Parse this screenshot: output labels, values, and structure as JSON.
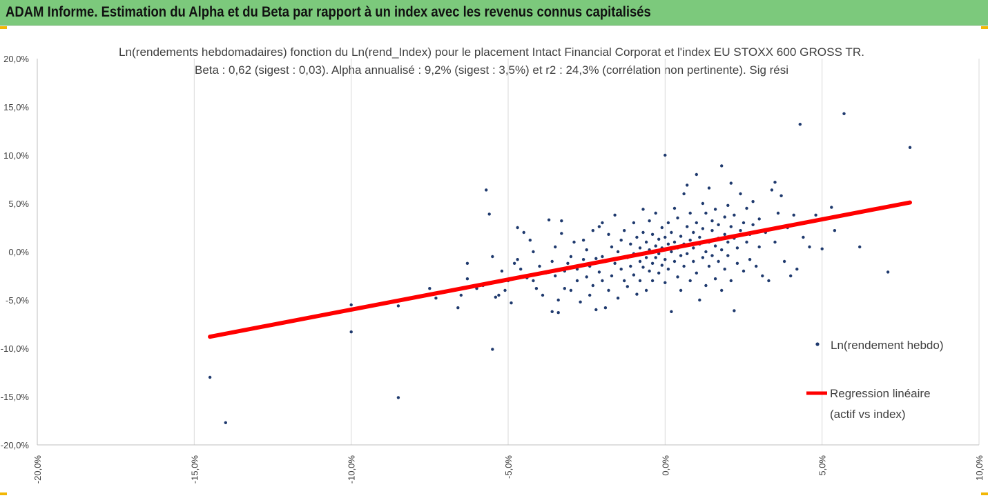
{
  "header": {
    "title": "ADAM Informe. Estimation du Alpha et du Beta par rapport à un index avec les revenus connus capitalisés"
  },
  "colors": {
    "header_bg": "#7cc97c",
    "points": "#1f3a6e",
    "regression": "#ff0000",
    "grid": "#d9d9d9",
    "corner_marks": "#f2b705"
  },
  "chart_data": {
    "type": "scatter",
    "title": "Ln(rendements hebdomadaires) fonction du Ln(rend_Index) pour le placement Intact Financial Corporat et l'index EU STOXX 600 GROSS TR.",
    "subtitle": "Beta : 0,62 (sigest : 0,03).  Alpha annualisé : 9,2% (sigest : 3,5%) et r2 : 24,3% (corrélation non pertinente). Sig rési",
    "xlabel": "",
    "ylabel": "",
    "xlim": [
      -0.2,
      0.1
    ],
    "ylim": [
      -0.2,
      0.2
    ],
    "x_ticks": [
      -0.2,
      -0.15,
      -0.1,
      -0.05,
      0.0,
      0.05,
      0.1
    ],
    "x_tick_labels": [
      "-20,0%",
      "-15,0%",
      "-10,0%",
      "-5,0%",
      "0,0%",
      "5,0%",
      "10,0%"
    ],
    "y_ticks": [
      0.2,
      0.15,
      0.1,
      0.05,
      0.0,
      -0.05,
      -0.1,
      -0.15,
      -0.2
    ],
    "y_tick_labels": [
      "20,0%",
      "15,0%",
      "10,0%",
      "5,0%",
      "0,0%",
      "-5,0%",
      "-10,0%",
      "-15,0%",
      "-20,0%"
    ],
    "grid": "vertical",
    "legend_position": "right",
    "series": [
      {
        "name": "Ln(rendement hebdo)",
        "kind": "scatter",
        "color": "#1f3a6e",
        "points": [
          [
            -0.145,
            -0.13
          ],
          [
            -0.14,
            -0.177
          ],
          [
            -0.1,
            -0.083
          ],
          [
            -0.1,
            -0.055
          ],
          [
            -0.085,
            -0.151
          ],
          [
            -0.085,
            -0.056
          ],
          [
            -0.075,
            -0.038
          ],
          [
            -0.073,
            -0.048
          ],
          [
            -0.066,
            -0.058
          ],
          [
            -0.065,
            -0.045
          ],
          [
            -0.063,
            -0.028
          ],
          [
            -0.063,
            -0.012
          ],
          [
            -0.06,
            -0.038
          ],
          [
            -0.058,
            -0.035
          ],
          [
            -0.057,
            0.064
          ],
          [
            -0.056,
            0.039
          ],
          [
            -0.056,
            -0.032
          ],
          [
            -0.055,
            -0.005
          ],
          [
            -0.055,
            -0.101
          ],
          [
            -0.054,
            -0.047
          ],
          [
            -0.053,
            -0.045
          ],
          [
            -0.052,
            -0.02
          ],
          [
            -0.051,
            -0.04
          ],
          [
            -0.05,
            -0.03
          ],
          [
            -0.049,
            -0.053
          ],
          [
            -0.048,
            -0.012
          ],
          [
            -0.047,
            -0.008
          ],
          [
            -0.047,
            0.025
          ],
          [
            -0.046,
            -0.018
          ],
          [
            -0.045,
            0.02
          ],
          [
            -0.044,
            -0.025
          ],
          [
            -0.044,
            -0.027
          ],
          [
            -0.043,
            0.012
          ],
          [
            -0.042,
            0.0
          ],
          [
            -0.042,
            -0.03
          ],
          [
            -0.041,
            -0.038
          ],
          [
            -0.04,
            -0.015
          ],
          [
            -0.039,
            -0.045
          ],
          [
            -0.038,
            -0.022
          ],
          [
            -0.037,
            0.033
          ],
          [
            -0.036,
            -0.062
          ],
          [
            -0.036,
            -0.01
          ],
          [
            -0.035,
            -0.025
          ],
          [
            -0.035,
            0.005
          ],
          [
            -0.034,
            -0.063
          ],
          [
            -0.034,
            -0.05
          ],
          [
            -0.033,
            0.032
          ],
          [
            -0.033,
            0.019
          ],
          [
            -0.032,
            -0.02
          ],
          [
            -0.032,
            -0.038
          ],
          [
            -0.031,
            -0.012
          ],
          [
            -0.03,
            -0.005
          ],
          [
            -0.03,
            -0.04
          ],
          [
            -0.029,
            0.01
          ],
          [
            -0.028,
            -0.03
          ],
          [
            -0.028,
            -0.018
          ],
          [
            -0.027,
            -0.052
          ],
          [
            -0.026,
            -0.008
          ],
          [
            -0.026,
            0.012
          ],
          [
            -0.025,
            -0.026
          ],
          [
            -0.025,
            0.002
          ],
          [
            -0.024,
            -0.045
          ],
          [
            -0.024,
            -0.015
          ],
          [
            -0.023,
            0.022
          ],
          [
            -0.023,
            -0.035
          ],
          [
            -0.022,
            -0.06
          ],
          [
            -0.022,
            -0.007
          ],
          [
            -0.021,
            0.026
          ],
          [
            -0.021,
            -0.021
          ],
          [
            -0.02,
            -0.03
          ],
          [
            -0.02,
            0.03
          ],
          [
            -0.02,
            -0.005
          ],
          [
            -0.019,
            -0.058
          ],
          [
            -0.019,
            -0.01
          ],
          [
            -0.018,
            -0.04
          ],
          [
            -0.018,
            0.018
          ],
          [
            -0.017,
            0.005
          ],
          [
            -0.017,
            -0.025
          ],
          [
            -0.016,
            -0.012
          ],
          [
            -0.016,
            0.038
          ],
          [
            -0.015,
            -0.048
          ],
          [
            -0.015,
            0.0
          ],
          [
            -0.014,
            -0.018
          ],
          [
            -0.014,
            0.012
          ],
          [
            -0.013,
            -0.03
          ],
          [
            -0.013,
            0.022
          ],
          [
            -0.012,
            -0.006
          ],
          [
            -0.012,
            -0.036
          ],
          [
            -0.011,
            0.008
          ],
          [
            -0.011,
            -0.015
          ],
          [
            -0.01,
            0.03
          ],
          [
            -0.01,
            -0.024
          ],
          [
            -0.01,
            -0.002
          ],
          [
            -0.009,
            -0.044
          ],
          [
            -0.009,
            0.015
          ],
          [
            -0.008,
            -0.01
          ],
          [
            -0.008,
            -0.03
          ],
          [
            -0.008,
            0.004
          ],
          [
            -0.007,
            0.044
          ],
          [
            -0.007,
            -0.016
          ],
          [
            -0.007,
            0.02
          ],
          [
            -0.006,
            -0.006
          ],
          [
            -0.006,
            -0.04
          ],
          [
            -0.006,
            0.01
          ],
          [
            -0.005,
            -0.02
          ],
          [
            -0.005,
            0.002
          ],
          [
            -0.005,
            0.032
          ],
          [
            -0.004,
            -0.012
          ],
          [
            -0.004,
            0.018
          ],
          [
            -0.004,
            -0.03
          ],
          [
            -0.003,
            0.006
          ],
          [
            -0.003,
            -0.006
          ],
          [
            -0.003,
            0.04
          ],
          [
            -0.002,
            -0.022
          ],
          [
            -0.002,
            0.013
          ],
          [
            -0.002,
            -0.002
          ],
          [
            -0.001,
            0.025
          ],
          [
            -0.001,
            -0.014
          ],
          [
            -0.001,
            0.004
          ],
          [
            0.0,
            0.1
          ],
          [
            0.0,
            -0.008
          ],
          [
            0.0,
            0.015
          ],
          [
            0.0,
            -0.032
          ],
          [
            0.001,
            0.008
          ],
          [
            0.001,
            -0.018
          ],
          [
            0.001,
            0.03
          ],
          [
            0.002,
            0.0
          ],
          [
            0.002,
            -0.062
          ],
          [
            0.002,
            0.02
          ],
          [
            0.003,
            -0.01
          ],
          [
            0.003,
            0.045
          ],
          [
            0.003,
            0.01
          ],
          [
            0.004,
            -0.026
          ],
          [
            0.004,
            0.004
          ],
          [
            0.004,
            0.035
          ],
          [
            0.005,
            -0.004
          ],
          [
            0.005,
            0.016
          ],
          [
            0.005,
            -0.04
          ],
          [
            0.006,
            0.06
          ],
          [
            0.006,
            0.008
          ],
          [
            0.006,
            -0.015
          ],
          [
            0.007,
            0.026
          ],
          [
            0.007,
            0.069
          ],
          [
            0.007,
            -0.002
          ],
          [
            0.008,
            0.012
          ],
          [
            0.008,
            -0.03
          ],
          [
            0.008,
            0.04
          ],
          [
            0.009,
            0.004
          ],
          [
            0.009,
            -0.01
          ],
          [
            0.009,
            0.02
          ],
          [
            0.01,
            0.08
          ],
          [
            0.01,
            -0.022
          ],
          [
            0.01,
            0.03
          ],
          [
            0.011,
            0.008
          ],
          [
            0.011,
            -0.05
          ],
          [
            0.011,
            0.015
          ],
          [
            0.012,
            0.05
          ],
          [
            0.012,
            -0.006
          ],
          [
            0.012,
            0.024
          ],
          [
            0.013,
            0.0
          ],
          [
            0.013,
            -0.035
          ],
          [
            0.013,
            0.04
          ],
          [
            0.014,
            0.01
          ],
          [
            0.014,
            -0.015
          ],
          [
            0.014,
            0.066
          ],
          [
            0.015,
            0.022
          ],
          [
            0.015,
            -0.004
          ],
          [
            0.015,
            0.032
          ],
          [
            0.016,
            0.006
          ],
          [
            0.016,
            -0.028
          ],
          [
            0.016,
            0.044
          ],
          [
            0.017,
            0.014
          ],
          [
            0.017,
            -0.01
          ],
          [
            0.017,
            0.028
          ],
          [
            0.018,
            0.089
          ],
          [
            0.018,
            0.002
          ],
          [
            0.018,
            -0.04
          ],
          [
            0.019,
            0.036
          ],
          [
            0.019,
            0.018
          ],
          [
            0.019,
            -0.018
          ],
          [
            0.02,
            0.01
          ],
          [
            0.02,
            0.048
          ],
          [
            0.02,
            -0.004
          ],
          [
            0.021,
            0.071
          ],
          [
            0.021,
            0.026
          ],
          [
            0.021,
            -0.03
          ],
          [
            0.022,
            0.014
          ],
          [
            0.022,
            -0.061
          ],
          [
            0.022,
            0.038
          ],
          [
            0.023,
            0.004
          ],
          [
            0.023,
            -0.012
          ],
          [
            0.024,
            0.06
          ],
          [
            0.024,
            0.022
          ],
          [
            0.025,
            -0.02
          ],
          [
            0.025,
            0.03
          ],
          [
            0.026,
            0.01
          ],
          [
            0.026,
            0.045
          ],
          [
            0.027,
            -0.008
          ],
          [
            0.027,
            0.018
          ],
          [
            0.028,
            0.052
          ],
          [
            0.028,
            0.028
          ],
          [
            0.029,
            -0.015
          ],
          [
            0.03,
            0.005
          ],
          [
            0.03,
            0.034
          ],
          [
            0.031,
            -0.025
          ],
          [
            0.032,
            0.02
          ],
          [
            0.033,
            -0.03
          ],
          [
            0.034,
            0.064
          ],
          [
            0.035,
            0.072
          ],
          [
            0.035,
            0.01
          ],
          [
            0.036,
            0.04
          ],
          [
            0.037,
            0.058
          ],
          [
            0.038,
            -0.01
          ],
          [
            0.039,
            0.025
          ],
          [
            0.04,
            -0.025
          ],
          [
            0.041,
            0.038
          ],
          [
            0.042,
            -0.018
          ],
          [
            0.043,
            0.132
          ],
          [
            0.044,
            0.015
          ],
          [
            0.045,
            0.03
          ],
          [
            0.046,
            0.005
          ],
          [
            0.048,
            0.038
          ],
          [
            0.05,
            0.003
          ],
          [
            0.053,
            0.046
          ],
          [
            0.054,
            0.022
          ],
          [
            0.057,
            0.143
          ],
          [
            0.062,
            0.005
          ],
          [
            0.071,
            -0.021
          ],
          [
            0.078,
            0.108
          ]
        ]
      },
      {
        "name": "Regression linéaire (actif vs index)",
        "kind": "line",
        "color": "#ff0000",
        "points": [
          [
            -0.145,
            -0.088
          ],
          [
            0.078,
            0.051
          ]
        ]
      }
    ]
  },
  "legend": {
    "scatter_label": "Ln(rendement hebdo)",
    "line_label_1": "Regression linéaire",
    "line_label_2": "(actif vs index)"
  }
}
